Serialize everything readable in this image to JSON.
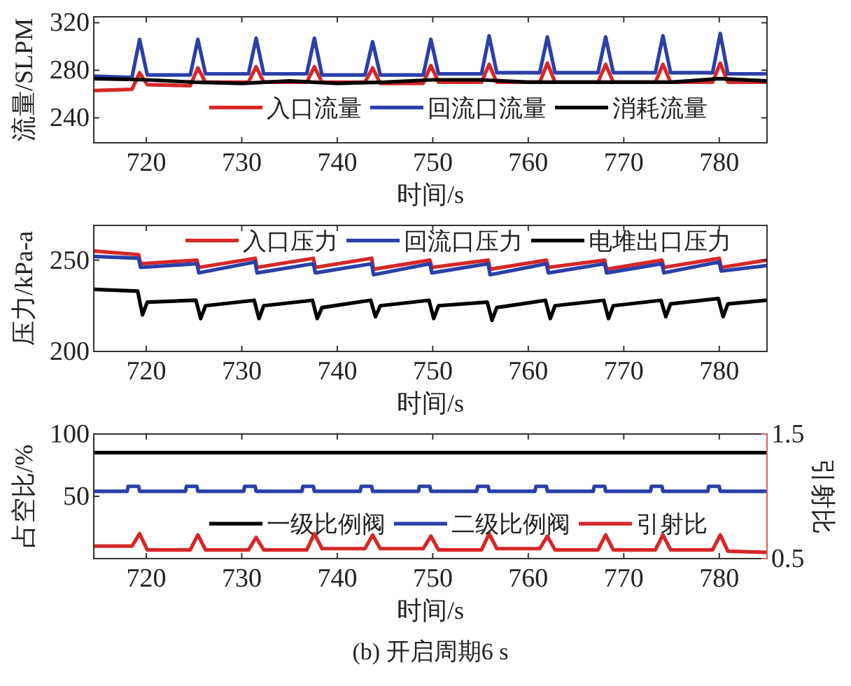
{
  "chart_data": [
    {
      "type": "line",
      "xlabel": "时间/s",
      "ylabel": "流量/SLPM",
      "xlim": [
        714.5,
        785
      ],
      "xticks": [
        720,
        730,
        740,
        750,
        760,
        770,
        780
      ],
      "ylim": [
        219,
        325
      ],
      "yticks": [
        240,
        280,
        320
      ],
      "legend": "bottom",
      "series": [
        {
          "name": "入口流量",
          "color": "#d62728",
          "x": [
            714.5,
            718.5,
            719.3,
            720.1,
            724.6,
            725.4,
            726.2,
            730.7,
            731.5,
            732.3,
            736.8,
            737.6,
            738.4,
            742.9,
            743.7,
            744.5,
            749.0,
            749.8,
            750.6,
            755.1,
            755.9,
            756.7,
            761.2,
            762.0,
            762.8,
            767.3,
            768.1,
            768.9,
            773.3,
            774.1,
            774.9,
            779.3,
            780.1,
            780.9,
            785
          ],
          "values": [
            263,
            264,
            278,
            268,
            267,
            282,
            270,
            270,
            283,
            270,
            270,
            283,
            270,
            270,
            282,
            269,
            269,
            284,
            270,
            270,
            285,
            270,
            270,
            286,
            270,
            270,
            285,
            270,
            270,
            285,
            270,
            270,
            286,
            270,
            270
          ]
        },
        {
          "name": "回流口流量",
          "color": "#2b3fa8",
          "x": [
            714.5,
            718.5,
            719.3,
            720.1,
            724.6,
            725.4,
            726.2,
            730.7,
            731.5,
            732.3,
            736.8,
            737.6,
            738.4,
            742.9,
            743.7,
            744.5,
            749.0,
            749.8,
            750.6,
            755.1,
            755.9,
            756.7,
            761.2,
            762.0,
            762.8,
            767.3,
            768.1,
            768.9,
            773.3,
            774.1,
            774.9,
            779.3,
            780.1,
            780.9,
            785
          ],
          "values": [
            275,
            274,
            306,
            276,
            276,
            306,
            277,
            277,
            307,
            277,
            277,
            307,
            276,
            276,
            304,
            276,
            276,
            306,
            277,
            277,
            309,
            278,
            278,
            308,
            278,
            278,
            308,
            278,
            278,
            309,
            278,
            278,
            311,
            277,
            277
          ]
        },
        {
          "name": "消耗流量",
          "color": "#000000",
          "x": [
            714.5,
            720,
            725,
            730,
            735,
            740,
            745,
            750,
            755,
            760,
            765,
            770,
            775,
            780,
            785
          ],
          "values": [
            273,
            272,
            270,
            269,
            271,
            269,
            270,
            272,
            272,
            270,
            270,
            270,
            270,
            273,
            271
          ]
        }
      ]
    },
    {
      "type": "line",
      "xlabel": "时间/s",
      "ylabel": "压力/kPa-a",
      "xlim": [
        714.5,
        785
      ],
      "xticks": [
        720,
        730,
        740,
        750,
        760,
        770,
        780
      ],
      "ylim": [
        200,
        269
      ],
      "yticks": [
        200,
        250
      ],
      "legend": "top",
      "series": [
        {
          "name": "入口压力",
          "color": "#d62728",
          "x": [
            714.5,
            719.2,
            719.4,
            725.3,
            725.5,
            731.4,
            731.6,
            737.5,
            737.7,
            743.6,
            743.8,
            749.7,
            749.9,
            755.8,
            756.0,
            761.9,
            762.1,
            768.0,
            768.2,
            774.0,
            774.2,
            780.0,
            780.2,
            785
          ],
          "values": [
            255,
            253,
            248,
            250,
            246,
            251,
            246,
            251,
            246,
            251,
            245,
            250,
            246,
            250,
            245,
            250,
            246,
            250,
            245,
            250,
            246,
            251,
            246,
            250
          ]
        },
        {
          "name": "回流口压力",
          "color": "#2b3fa8",
          "x": [
            714.5,
            719.2,
            719.4,
            725.3,
            725.5,
            731.4,
            731.6,
            737.5,
            737.7,
            743.6,
            743.8,
            749.7,
            749.9,
            755.8,
            756.0,
            761.9,
            762.1,
            768.0,
            768.2,
            774.0,
            774.2,
            780.0,
            780.2,
            785
          ],
          "values": [
            252,
            251,
            246,
            248,
            243,
            249,
            243,
            248,
            243,
            248,
            242,
            248,
            243,
            248,
            242,
            248,
            243,
            248,
            243,
            248,
            243,
            249,
            244,
            247
          ]
        },
        {
          "name": "电堆出口压力",
          "color": "#000000",
          "x": [
            714.5,
            719.1,
            719.6,
            720.1,
            725.2,
            725.7,
            726.2,
            731.3,
            731.8,
            732.3,
            737.4,
            737.9,
            738.4,
            743.5,
            744.0,
            744.5,
            749.6,
            750.1,
            750.6,
            755.7,
            756.2,
            756.7,
            761.8,
            762.3,
            762.8,
            767.9,
            768.4,
            768.9,
            773.9,
            774.4,
            774.9,
            779.9,
            780.4,
            780.9,
            785
          ],
          "values": [
            234,
            233,
            220,
            227,
            228,
            218,
            225,
            228,
            218,
            225,
            228,
            218,
            224,
            228,
            219,
            225,
            228,
            218,
            225,
            227,
            217,
            224,
            228,
            218,
            225,
            228,
            218,
            225,
            228,
            219,
            226,
            229,
            219,
            226,
            228
          ]
        }
      ]
    },
    {
      "type": "line",
      "xlabel": "时间/s",
      "ylabel": "占空比/%",
      "y2label": "引射比",
      "xlim": [
        714.5,
        785
      ],
      "xticks": [
        720,
        730,
        740,
        750,
        760,
        770,
        780
      ],
      "ylim": [
        0,
        100
      ],
      "yticks": [
        50,
        100
      ],
      "y2lim": [
        0.5,
        1.5
      ],
      "y2ticks": [
        0.5,
        1.5
      ],
      "legend": "bottom",
      "annotations": [
        "(b) 开启周期6 s"
      ],
      "series": [
        {
          "name": "一级比例阀",
          "color": "#000000",
          "x": [
            714.5,
            785
          ],
          "values": [
            85,
            85
          ]
        },
        {
          "name": "二级比例阀",
          "color": "#2b3fa8",
          "x": [
            714.5,
            718.0,
            718.1,
            719.2,
            719.3,
            724.1,
            724.2,
            725.3,
            725.4,
            730.2,
            730.3,
            731.4,
            731.5,
            736.3,
            736.4,
            737.5,
            737.6,
            742.4,
            742.5,
            743.6,
            743.7,
            748.5,
            748.6,
            749.7,
            749.8,
            754.6,
            754.7,
            755.8,
            755.9,
            760.7,
            760.8,
            761.9,
            762.0,
            766.8,
            766.9,
            768.0,
            768.1,
            772.8,
            772.9,
            774.0,
            774.1,
            778.8,
            778.9,
            780.0,
            780.1,
            785
          ],
          "values": [
            54,
            54,
            58,
            58,
            54,
            54,
            58,
            58,
            54,
            54,
            58,
            58,
            54,
            54,
            58,
            58,
            54,
            54,
            58,
            58,
            54,
            54,
            58,
            58,
            54,
            54,
            58,
            58,
            54,
            54,
            58,
            58,
            54,
            54,
            58,
            58,
            54,
            54,
            58,
            58,
            54,
            54,
            58,
            58,
            54,
            54
          ]
        },
        {
          "name": "引射比",
          "color": "#d62728",
          "axis": "y2",
          "x": [
            714.5,
            718.5,
            719.3,
            720.1,
            724.6,
            725.4,
            726.2,
            730.7,
            731.5,
            732.3,
            736.8,
            737.6,
            738.4,
            742.9,
            743.7,
            744.5,
            749.0,
            749.8,
            750.6,
            755.1,
            755.9,
            756.7,
            761.2,
            762.0,
            762.8,
            767.3,
            768.1,
            768.9,
            773.3,
            774.1,
            774.9,
            779.3,
            780.1,
            780.9,
            785
          ],
          "values": [
            0.6,
            0.6,
            0.7,
            0.57,
            0.57,
            0.69,
            0.57,
            0.57,
            0.67,
            0.57,
            0.57,
            0.7,
            0.58,
            0.58,
            0.69,
            0.58,
            0.58,
            0.68,
            0.57,
            0.57,
            0.7,
            0.58,
            0.58,
            0.68,
            0.57,
            0.57,
            0.69,
            0.57,
            0.57,
            0.69,
            0.57,
            0.57,
            0.69,
            0.56,
            0.55
          ]
        }
      ]
    }
  ]
}
